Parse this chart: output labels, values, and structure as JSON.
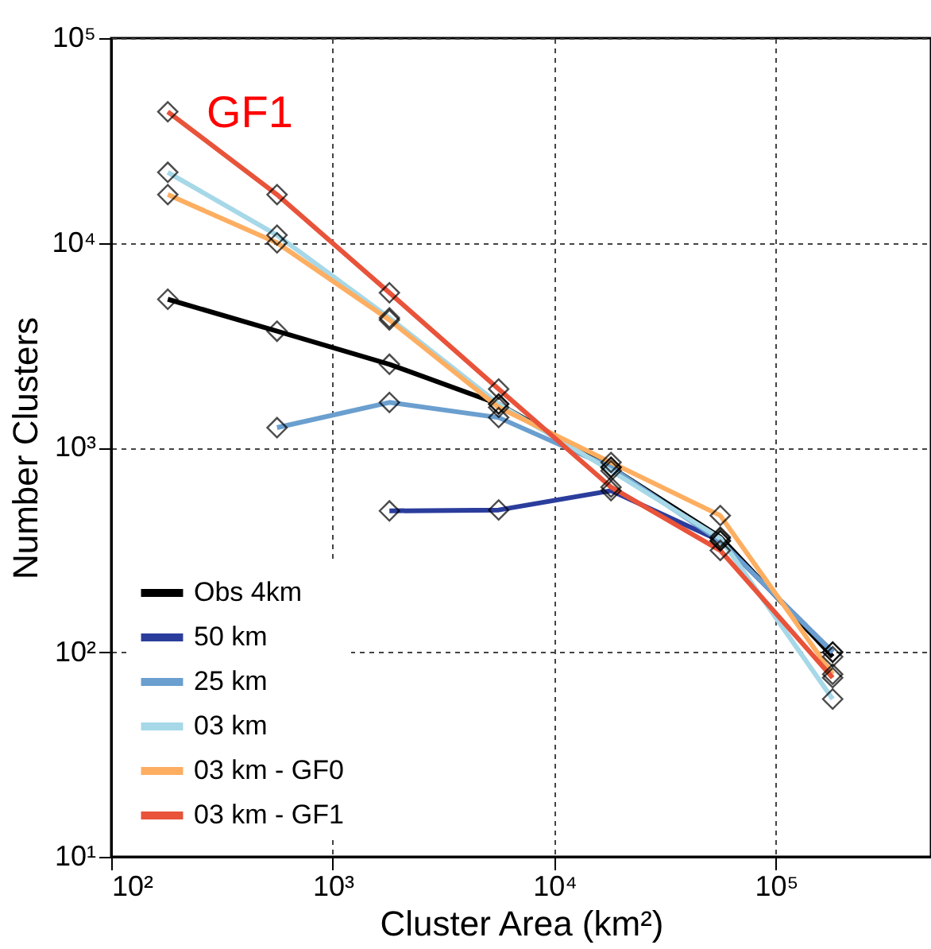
{
  "chart_data": {
    "type": "line",
    "xlabel": "Cluster Area (km²)",
    "ylabel": "Number Clusters",
    "annotations": [
      "GF1"
    ],
    "x": [
      180,
      560,
      1800,
      5600,
      18000,
      56000,
      180000
    ],
    "series": [
      {
        "name": "Obs 4km",
        "color": "#000000",
        "values": [
          5300,
          3700,
          2550,
          1630,
          800,
          365,
          95
        ]
      },
      {
        "name": "50 km",
        "color": "#2b3d9c",
        "values": [
          null,
          null,
          490,
          495,
          615,
          350,
          100
        ]
      },
      {
        "name": "25 km",
        "color": "#6a9fcf",
        "values": [
          null,
          1250,
          1660,
          1400,
          800,
          350,
          100
        ]
      },
      {
        "name": "03 km",
        "color": "#a6d8e8",
        "values": [
          22100,
          10900,
          4300,
          1630,
          770,
          360,
          59
        ]
      },
      {
        "name": "03 km - GF0",
        "color": "#fdae61",
        "values": [
          17200,
          10000,
          4200,
          1570,
          845,
          465,
          78
        ]
      },
      {
        "name": "03 km - GF1",
        "color": "#e8533a",
        "values": [
          43700,
          17200,
          5700,
          1930,
          640,
          314,
          75
        ]
      }
    ],
    "log": "xy",
    "xlim": [
      100,
      500000
    ],
    "ylim": [
      10,
      100000
    ],
    "xticks": [
      {
        "value": 100,
        "label": "10²"
      },
      {
        "value": 1000,
        "label": "10³"
      },
      {
        "value": 10000,
        "label": "10⁴"
      },
      {
        "value": 100000,
        "label": "10⁵"
      }
    ],
    "yticks": [
      {
        "value": 10,
        "label": "10¹"
      },
      {
        "value": 100,
        "label": "10²"
      },
      {
        "value": 1000,
        "label": "10³"
      },
      {
        "value": 10000,
        "label": "10⁴"
      },
      {
        "value": 100000,
        "label": "10⁵"
      }
    ],
    "grid": true,
    "legend": "bottom left",
    "marker": "diamond",
    "line_style": "solid"
  }
}
